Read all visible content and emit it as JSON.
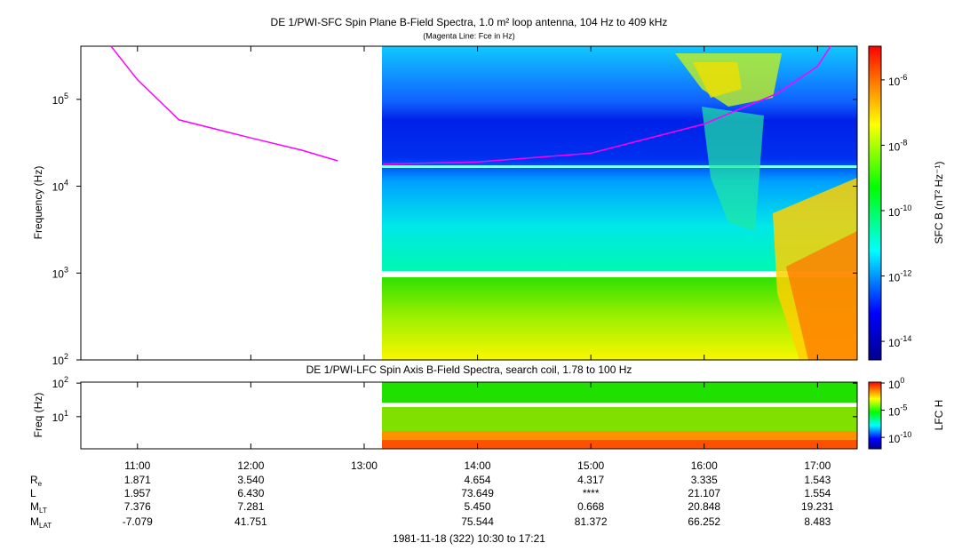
{
  "chart_data": [
    {
      "type": "spectrogram",
      "title": "DE 1/PWI-SFC  Spin Plane B-Field Spectra, 1.0 m² loop antenna, 104 Hz to 409 kHz",
      "subtitle": "(Magenta Line: Fce in Hz)",
      "ylabel": "Frequency (Hz)",
      "log_y": true,
      "ylim": [
        100,
        409000
      ],
      "yticks": [
        {
          "value": 100,
          "label": "10",
          "sup": "2"
        },
        {
          "value": 1000,
          "label": "10",
          "sup": "3"
        },
        {
          "value": 10000,
          "label": "10",
          "sup": "4"
        },
        {
          "value": 100000,
          "label": "10",
          "sup": "5"
        }
      ],
      "xlim": [
        "10:30",
        "17:21"
      ],
      "xticks": [
        "11:00",
        "12:00",
        "13:00",
        "14:00",
        "15:00",
        "16:00",
        "17:00"
      ],
      "x": [
        "10:46",
        "11:00",
        "11:22",
        "12:00",
        "12:27",
        "12:46",
        null,
        "13:10",
        "14:00",
        "15:00",
        "16:00",
        "16:39",
        "17:00",
        "17:07"
      ],
      "series": [
        {
          "color": "#ff00ff",
          "values": [
            409000,
            168000,
            58000,
            36000,
            26000,
            19600,
            null,
            18000,
            19000,
            24000,
            52000,
            118000,
            240000,
            409000
          ]
        }
      ],
      "colorbar": {
        "label": "SFC B (nT² Hz⁻¹)",
        "lim": [
          2.7e-15,
          1.07e-05
        ],
        "ticks": [
          {
            "value": 1e-14,
            "label": "10",
            "sup": "-14"
          },
          {
            "value": 1e-12,
            "label": "10",
            "sup": "-12"
          },
          {
            "value": 1e-10,
            "label": "10",
            "sup": "-10"
          },
          {
            "value": 1e-08,
            "label": "10",
            "sup": "-8"
          },
          {
            "value": 1e-06,
            "label": "10",
            "sup": "-6"
          }
        ]
      }
    },
    {
      "type": "spectrogram",
      "title": "DE 1/PWI-LFC  Spin Axis B-Field Spectra, search coil, 1.78 to 100 Hz",
      "ylabel": "Freq (Hz)",
      "log_y": true,
      "ylim": [
        1.1,
        107
      ],
      "yticks": [
        {
          "value": 10,
          "label": "10",
          "sup": "1"
        },
        {
          "value": 100,
          "label": "10",
          "sup": "2"
        }
      ],
      "xlim": [
        "10:30",
        "17:21"
      ],
      "xticks": [
        "11:00",
        "12:00",
        "13:00",
        "14:00",
        "15:00",
        "16:00",
        "17:00"
      ],
      "colorbar": {
        "label": "LFC H",
        "lim": [
          7.9e-13,
          1.45
        ],
        "ticks": [
          {
            "value": 1e-10,
            "label": "10",
            "sup": "-10"
          },
          {
            "value": 1e-05,
            "label": "10",
            "sup": "-5"
          },
          {
            "value": 1,
            "label": "10",
            "sup": "0"
          }
        ]
      }
    }
  ],
  "ephemeris": {
    "rows": [
      {
        "label": "R",
        "sub": "e",
        "values": [
          "1.871",
          "3.540",
          null,
          "4.654",
          "4.317",
          "3.335",
          "1.543"
        ]
      },
      {
        "label": "L",
        "values": [
          "1.957",
          "6.430",
          null,
          "73.649",
          "****",
          "21.107",
          "1.554"
        ]
      },
      {
        "label": "M",
        "sub": "LT",
        "values": [
          "7.376",
          "7.281",
          null,
          "5.450",
          "0.668",
          "20.848",
          "19.231"
        ]
      },
      {
        "label": "M",
        "sub": "LAT",
        "values": [
          "-7.079",
          "41.751",
          null,
          "75.544",
          "81.372",
          "66.252",
          "8.483"
        ]
      }
    ]
  },
  "footer": "1981-11-18 (322) 10:30 to 17:21"
}
